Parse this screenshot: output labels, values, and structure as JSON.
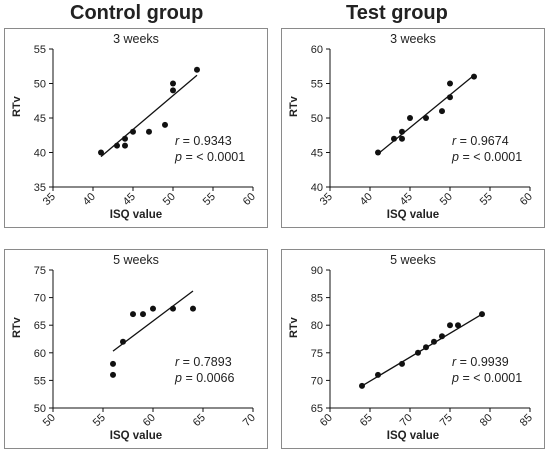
{
  "group_titles": [
    "Control group",
    "Test group"
  ],
  "chart_data": [
    {
      "type": "scatter",
      "group": "Control group",
      "title": "3 weeks",
      "xlabel": "ISQ value",
      "ylabel": "RTv",
      "xlim": [
        35,
        60
      ],
      "xticks": [
        35,
        40,
        45,
        50,
        55,
        60
      ],
      "ylim": [
        35,
        55
      ],
      "yticks": [
        35,
        40,
        45,
        50,
        55
      ],
      "points": [
        [
          41,
          40
        ],
        [
          43,
          41
        ],
        [
          44,
          41
        ],
        [
          44,
          42
        ],
        [
          45,
          43
        ],
        [
          47,
          43
        ],
        [
          49,
          44
        ],
        [
          50,
          49
        ],
        [
          50,
          50
        ],
        [
          53,
          52
        ]
      ],
      "fit_line": [
        [
          41,
          39.4
        ],
        [
          53,
          51.2
        ]
      ],
      "r_label": "r",
      "r_value": "= 0.9343",
      "p_label": "p",
      "p_value": "= < 0.0001"
    },
    {
      "type": "scatter",
      "group": "Test group",
      "title": "3 weeks",
      "xlabel": "ISQ value",
      "ylabel": "RTv",
      "xlim": [
        35,
        60
      ],
      "xticks": [
        35,
        40,
        45,
        50,
        55,
        60
      ],
      "ylim": [
        40,
        60
      ],
      "yticks": [
        40,
        45,
        50,
        55,
        60
      ],
      "points": [
        [
          41,
          45
        ],
        [
          43,
          47
        ],
        [
          44,
          47
        ],
        [
          44,
          48
        ],
        [
          45,
          50
        ],
        [
          47,
          50
        ],
        [
          49,
          51
        ],
        [
          50,
          53
        ],
        [
          50,
          55
        ],
        [
          53,
          56
        ]
      ],
      "fit_line": [
        [
          41,
          44.8
        ],
        [
          53,
          56.2
        ]
      ],
      "r_label": "r",
      "r_value": "= 0.9674",
      "p_label": "p",
      "p_value": "= < 0.0001"
    },
    {
      "type": "scatter",
      "group": "Control group",
      "title": "5 weeks",
      "xlabel": "ISQ value",
      "ylabel": "RTv",
      "xlim": [
        50,
        70
      ],
      "xticks": [
        50,
        55,
        60,
        65,
        70
      ],
      "ylim": [
        50,
        75
      ],
      "yticks": [
        50,
        55,
        60,
        65,
        70,
        75
      ],
      "points": [
        [
          56,
          56
        ],
        [
          56,
          58
        ],
        [
          57,
          62
        ],
        [
          58,
          67
        ],
        [
          59,
          67
        ],
        [
          60,
          68
        ],
        [
          62,
          68
        ],
        [
          64,
          68
        ]
      ],
      "fit_line": [
        [
          56,
          60.3
        ],
        [
          64,
          71.2
        ]
      ],
      "r_label": "r",
      "r_value": "= 0.7893",
      "p_label": "p",
      "p_value": "= 0.0066"
    },
    {
      "type": "scatter",
      "group": "Test group",
      "title": "5 weeks",
      "xlabel": "ISQ value",
      "ylabel": "RTv",
      "xlim": [
        60,
        85
      ],
      "xticks": [
        60,
        65,
        70,
        75,
        80,
        85
      ],
      "ylim": [
        65,
        90
      ],
      "yticks": [
        65,
        70,
        75,
        80,
        85,
        90
      ],
      "points": [
        [
          64,
          69
        ],
        [
          66,
          71
        ],
        [
          69,
          73
        ],
        [
          71,
          75
        ],
        [
          72,
          76
        ],
        [
          73,
          77
        ],
        [
          74,
          78
        ],
        [
          75,
          80
        ],
        [
          76,
          80
        ],
        [
          79,
          82
        ]
      ],
      "fit_line": [
        [
          64,
          69
        ],
        [
          79,
          82
        ]
      ],
      "r_label": "r",
      "r_value": "= 0.9939",
      "p_label": "p",
      "p_value": "= < 0.0001"
    }
  ]
}
